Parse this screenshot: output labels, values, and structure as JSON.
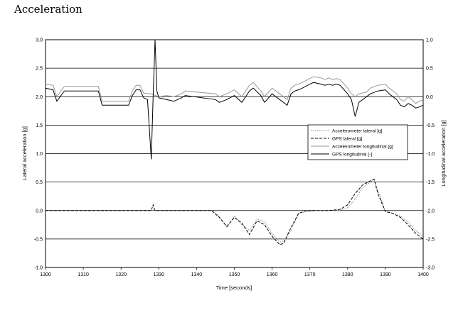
{
  "page": {
    "title": "Acceleration"
  },
  "chart_data": {
    "type": "line",
    "xlabel": "Time [seconds]",
    "ylabel_left": "Lateral acceleration [g]",
    "ylabel_right": "Longitudinal acceleration [g]",
    "xlim": [
      1300,
      1400
    ],
    "ylim_left": [
      -1.0,
      3.0
    ],
    "ylim_right": [
      -3.0,
      1.0
    ],
    "x_ticks": [
      "1300",
      "1310",
      "1320",
      "1330",
      "1340",
      "1350",
      "1360",
      "1370",
      "1380",
      "1390",
      "1400"
    ],
    "y_left_ticks": [
      "3.0",
      "2.5",
      "2.0",
      "1.5",
      "1.0",
      "0.5",
      "0.0",
      "-0.5",
      "-1.0"
    ],
    "y_right_ticks": [
      "1.0",
      "0.5",
      "0.0",
      "-0.5",
      "-1.0",
      "-1.5",
      "-2.0",
      "-2.5",
      "-3.0"
    ],
    "grid": "horizontal",
    "legend_position": "right-center",
    "series": [
      {
        "name": "Accelerometer lateral [g]",
        "axis": "left",
        "color": "#888888",
        "style": "dotted",
        "x": [
          1300,
          1344,
          1346,
          1348,
          1350,
          1352,
          1354,
          1356,
          1358,
          1360,
          1362,
          1363,
          1365,
          1367,
          1369,
          1372,
          1375,
          1378,
          1380,
          1382,
          1384,
          1386,
          1387,
          1388,
          1390,
          1392,
          1394,
          1396,
          1398,
          1400
        ],
        "y": [
          0.0,
          0.0,
          -0.1,
          -0.3,
          -0.1,
          -0.25,
          -0.35,
          -0.15,
          -0.2,
          -0.4,
          -0.55,
          -0.55,
          -0.35,
          -0.05,
          -0.02,
          0.0,
          0.0,
          0.0,
          0.05,
          0.2,
          0.4,
          0.5,
          0.55,
          0.35,
          0.0,
          -0.05,
          -0.1,
          -0.2,
          -0.35,
          -0.45
        ]
      },
      {
        "name": "GPS lateral [g]",
        "axis": "left",
        "color": "#000000",
        "style": "dashed",
        "x": [
          1300,
          1328,
          1328.5,
          1329,
          1344,
          1346,
          1348,
          1350,
          1352,
          1354,
          1356,
          1358,
          1360,
          1362,
          1363,
          1365,
          1367,
          1369,
          1372,
          1375,
          1378,
          1380,
          1382,
          1384,
          1386,
          1387,
          1388,
          1390,
          1392,
          1394,
          1396,
          1398,
          1400
        ],
        "y": [
          0.0,
          0.0,
          0.1,
          0.0,
          0.0,
          -0.12,
          -0.28,
          -0.12,
          -0.22,
          -0.42,
          -0.18,
          -0.25,
          -0.45,
          -0.6,
          -0.58,
          -0.3,
          -0.05,
          0.0,
          0.0,
          0.0,
          0.02,
          0.1,
          0.3,
          0.45,
          0.52,
          0.55,
          0.3,
          -0.02,
          -0.05,
          -0.12,
          -0.25,
          -0.4,
          -0.5
        ]
      },
      {
        "name": "Accelerometer longitudinal [g]",
        "axis": "right",
        "color": "#999999",
        "style": "solid",
        "x": [
          1300,
          1302,
          1303,
          1305,
          1314,
          1315,
          1322,
          1323,
          1324,
          1325,
          1326,
          1328,
          1330,
          1332,
          1334,
          1336,
          1337,
          1345,
          1346,
          1348,
          1350,
          1352,
          1354,
          1355,
          1357,
          1358,
          1360,
          1362,
          1364,
          1365,
          1366,
          1367,
          1368,
          1370,
          1371,
          1373,
          1374,
          1375,
          1376,
          1377,
          1378,
          1380,
          1381,
          1382,
          1383,
          1385,
          1386,
          1388,
          1390,
          1391,
          1393,
          1394,
          1395,
          1396,
          1397,
          1398,
          1399,
          1400
        ],
        "y": [
          0.22,
          0.2,
          0.0,
          0.18,
          0.18,
          -0.08,
          -0.08,
          0.1,
          0.2,
          0.2,
          0.06,
          0.05,
          0.0,
          0.02,
          0.0,
          0.05,
          0.1,
          0.05,
          0.0,
          0.05,
          0.12,
          0.0,
          0.2,
          0.25,
          0.1,
          0.0,
          0.15,
          0.05,
          -0.05,
          0.15,
          0.2,
          0.22,
          0.25,
          0.32,
          0.35,
          0.33,
          0.3,
          0.33,
          0.3,
          0.32,
          0.3,
          0.15,
          0.05,
          0.0,
          0.05,
          0.08,
          0.15,
          0.2,
          0.22,
          0.15,
          0.05,
          -0.05,
          -0.08,
          0.0,
          -0.05,
          -0.12,
          -0.08,
          -0.05
        ]
      },
      {
        "name": "GPS longitudinal [-]",
        "axis": "right",
        "color": "#000000",
        "style": "solid",
        "x": [
          1300,
          1302,
          1303,
          1305,
          1314,
          1315,
          1322,
          1323,
          1324,
          1325,
          1326,
          1327,
          1328,
          1328.5,
          1329,
          1329.5,
          1330,
          1332,
          1334,
          1336,
          1337,
          1345,
          1346,
          1348,
          1350,
          1352,
          1354,
          1355,
          1357,
          1358,
          1360,
          1362,
          1364,
          1365,
          1366,
          1367,
          1368,
          1370,
          1371,
          1373,
          1374,
          1375,
          1376,
          1377,
          1378,
          1380,
          1381,
          1382,
          1383,
          1385,
          1386,
          1388,
          1390,
          1391,
          1393,
          1394,
          1395,
          1396,
          1397,
          1398,
          1399,
          1400
        ],
        "y": [
          0.15,
          0.12,
          -0.08,
          0.1,
          0.1,
          -0.15,
          -0.15,
          0.02,
          0.12,
          0.12,
          -0.02,
          -0.05,
          -1.1,
          0.0,
          1.0,
          0.1,
          -0.02,
          -0.05,
          -0.08,
          -0.02,
          0.02,
          -0.05,
          -0.1,
          -0.05,
          0.02,
          -0.1,
          0.1,
          0.15,
          0.02,
          -0.1,
          0.05,
          -0.05,
          -0.15,
          0.05,
          0.1,
          0.12,
          0.15,
          0.22,
          0.25,
          0.22,
          0.2,
          0.22,
          0.2,
          0.22,
          0.2,
          0.05,
          -0.05,
          -0.35,
          -0.1,
          0.0,
          0.05,
          0.1,
          0.12,
          0.05,
          -0.05,
          -0.15,
          -0.18,
          -0.12,
          -0.15,
          -0.2,
          -0.18,
          -0.15
        ]
      }
    ]
  }
}
